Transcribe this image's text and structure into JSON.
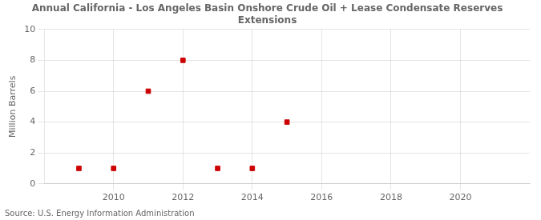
{
  "chart_data": {
    "type": "scatter",
    "title": "Annual California - Los Angeles Basin Onshore Crude Oil + Lease Condensate Reserves\nExtensions",
    "y_label": "Million Barrels",
    "annotations": [
      "Source: U.S. Energy Information Administration"
    ],
    "x": [
      2009,
      2010,
      2011,
      2012,
      2013,
      2014,
      2015
    ],
    "values": [
      1.0,
      1.0,
      6.0,
      8.0,
      1.0,
      1.0,
      4.0
    ],
    "color": "#cc0000",
    "marker": "square",
    "xlim": [
      2008,
      2022
    ],
    "ylim": [
      0,
      10
    ],
    "xticks": [
      2010,
      2012,
      2014,
      2016,
      2018,
      2020
    ],
    "yticks": [
      0,
      2,
      4,
      6,
      8,
      10
    ],
    "grid": true
  }
}
